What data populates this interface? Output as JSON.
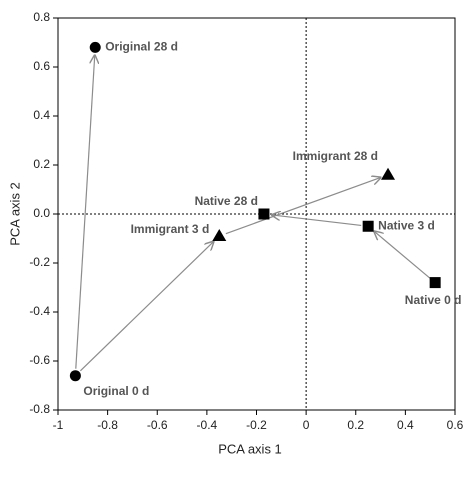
{
  "chart_data": {
    "type": "scatter",
    "xlabel": "PCA axis 1",
    "ylabel": "PCA axis 2",
    "xlim": [
      -1,
      0.6
    ],
    "xticks": [
      -1,
      -0.8,
      -0.6,
      -0.4,
      -0.2,
      0,
      0.2,
      0.4,
      0.6
    ],
    "ylim": [
      -0.8,
      0.8
    ],
    "yticks": [
      -0.8,
      -0.6,
      -0.4,
      -0.2,
      {
        "value": 0,
        "label": "0.0"
      },
      0.2,
      0.4,
      0.6,
      0.8
    ],
    "zero_lines": true,
    "color": "#000000",
    "arrow_color": "#8c8c8c",
    "points": [
      {
        "label": "Original 28 d",
        "x": -0.85,
        "y": 0.68,
        "marker": "circle"
      },
      {
        "label": "Original 0 d",
        "x": -0.93,
        "y": -0.66,
        "marker": "circle"
      },
      {
        "label": "Immigrant 3 d",
        "x": -0.35,
        "y": -0.09,
        "marker": "triangle"
      },
      {
        "label": "Native 28 d",
        "x": -0.17,
        "y": 0.0,
        "marker": "square"
      },
      {
        "label": "Immigrant 28 d",
        "x": 0.33,
        "y": 0.16,
        "marker": "triangle"
      },
      {
        "label": "Native 3 d",
        "x": 0.25,
        "y": -0.05,
        "marker": "square"
      },
      {
        "label": "Native 0 d",
        "x": 0.52,
        "y": -0.28,
        "marker": "square"
      }
    ],
    "arrows": [
      {
        "from": "Original 0 d",
        "to": "Original 28 d"
      },
      {
        "from": "Original 0 d",
        "to": "Immigrant 3 d"
      },
      {
        "from": "Immigrant 3 d",
        "to": "Immigrant 28 d"
      },
      {
        "from": "Native 0 d",
        "to": "Native 3 d"
      },
      {
        "from": "Native 3 d",
        "to": "Native 28 d"
      }
    ]
  }
}
